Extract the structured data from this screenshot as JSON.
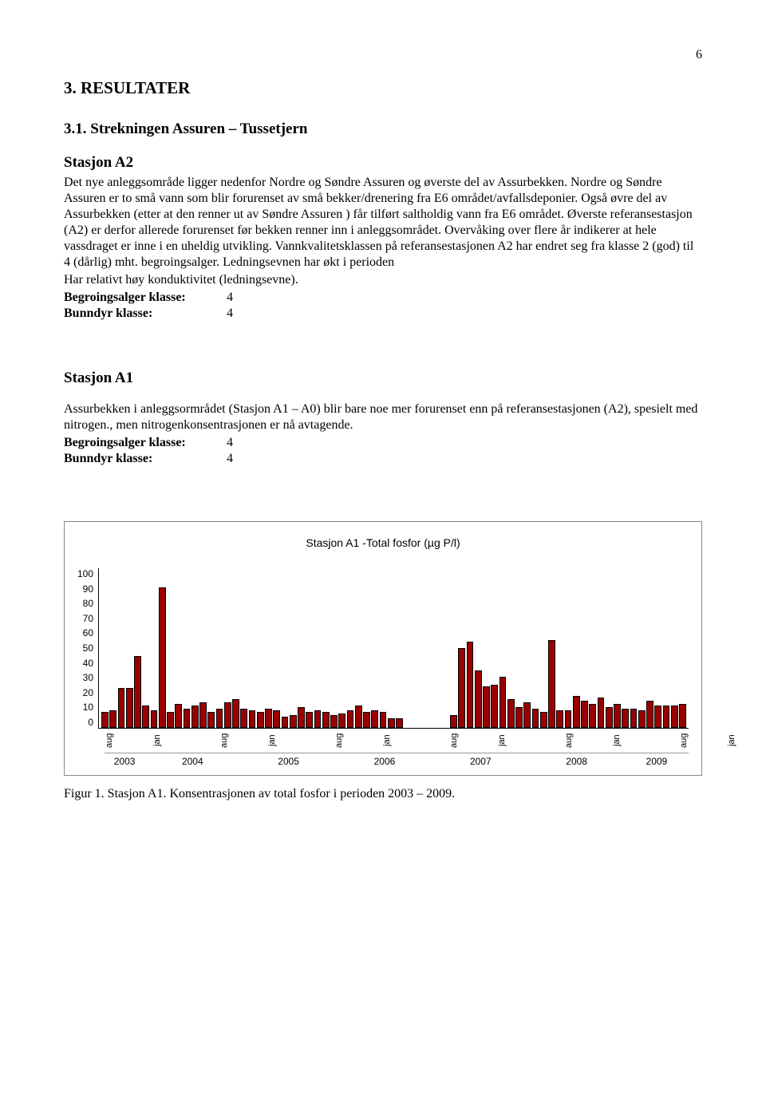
{
  "page_number": "6",
  "section": {
    "heading": "3.   RESULTATER",
    "subheading": "3.1.   Strekningen Assuren – Tussetjern"
  },
  "stationA2": {
    "title": "Stasjon A2",
    "para1": "Det nye anleggsområde ligger nedenfor Nordre og Søndre Assuren og øverste del av Assurbekken. Nordre og Søndre Assuren er to små vann som blir forurenset av små bekker/drenering fra E6 området/avfallsdeponier. Også øvre del av Assurbekken (etter at den renner ut av Søndre Assuren ) får tilført saltholdig vann fra E6 området. Øverste referansestasjon (A2) er derfor allerede forurenset før bekken renner inn i anleggsområdet. Overvåking over flere år indikerer at hele vassdraget er inne i en uheldig utvikling. Vannkvalitetsklassen på referansestasjonen A2 har endret seg fra klasse 2 (god) til 4 (dårlig) mht. begroingsalger. Ledningsevnen har økt i perioden",
    "para2": "Har relativt høy konduktivitet (ledningsevne).",
    "begroLabel": "Begroingsalger klasse:",
    "begroVal": "4",
    "bunnLabel": "Bunndyr klasse:",
    "bunnVal": "4"
  },
  "stationA1": {
    "title": "Stasjon A1",
    "para": "Assurbekken i anleggsormrådet (Stasjon A1 – A0) blir bare noe mer forurenset enn på referansestasjonen (A2), spesielt med nitrogen., men nitrogenkonsentrasjonen er nå avtagende.",
    "begroLabel": "Begroingsalger klasse:",
    "begroVal": "4",
    "bunnLabel": "Bunndyr klasse:",
    "bunnVal": "4"
  },
  "chart": {
    "type": "bar",
    "title": "Stasjon A1 -Total fosfor (µg P/l)",
    "background_color": "#ffffff",
    "bar_fill": "#9b0000",
    "bar_border": "#000000",
    "axis_color": "#000000",
    "ylim": [
      0,
      100
    ],
    "ytick_step": 10,
    "yticks": [
      "100",
      "90",
      "80",
      "70",
      "60",
      "50",
      "40",
      "30",
      "20",
      "10",
      "0"
    ],
    "title_fontsize": 14,
    "tick_fontsize": 12,
    "bars": [
      {
        "year": "2003",
        "m": "aug",
        "v": 10
      },
      {
        "year": "2003",
        "m": "sep",
        "v": 11
      },
      {
        "year": "2003",
        "m": "okt",
        "v": 25
      },
      {
        "year": "2003",
        "m": "nov",
        "v": 25
      },
      {
        "year": "2003",
        "m": "des",
        "v": 45
      },
      {
        "year": "2004",
        "m": "jan",
        "v": 14
      },
      {
        "year": "2004",
        "m": "feb",
        "v": 11
      },
      {
        "year": "2004",
        "m": "mar",
        "v": 88
      },
      {
        "year": "2004",
        "m": "apr",
        "v": 10
      },
      {
        "year": "2004",
        "m": "mai",
        "v": 15
      },
      {
        "year": "2004",
        "m": "jun",
        "v": 12
      },
      {
        "year": "2004",
        "m": "jul",
        "v": 14
      },
      {
        "year": "2004",
        "m": "aug",
        "v": 16
      },
      {
        "year": "2004",
        "m": "sep",
        "v": 10
      },
      {
        "year": "2004",
        "m": "okt",
        "v": 12
      },
      {
        "year": "2004",
        "m": "nov",
        "v": 16
      },
      {
        "year": "2004",
        "m": "des",
        "v": 18
      },
      {
        "year": "2005",
        "m": "jan",
        "v": 12
      },
      {
        "year": "2005",
        "m": "feb",
        "v": 11
      },
      {
        "year": "2005",
        "m": "mar",
        "v": 10
      },
      {
        "year": "2005",
        "m": "apr",
        "v": 12
      },
      {
        "year": "2005",
        "m": "mai",
        "v": 11
      },
      {
        "year": "2005",
        "m": "jun",
        "v": 7
      },
      {
        "year": "2005",
        "m": "jul",
        "v": 8
      },
      {
        "year": "2005",
        "m": "aug",
        "v": 13
      },
      {
        "year": "2005",
        "m": "sep",
        "v": 10
      },
      {
        "year": "2005",
        "m": "okt",
        "v": 11
      },
      {
        "year": "2005",
        "m": "nov",
        "v": 10
      },
      {
        "year": "2005",
        "m": "des",
        "v": 8
      },
      {
        "year": "2006",
        "m": "jan",
        "v": 9
      },
      {
        "year": "2006",
        "m": "feb",
        "v": 11
      },
      {
        "year": "2006",
        "m": "mar",
        "v": 14
      },
      {
        "year": "2006",
        "m": "apr",
        "v": 10
      },
      {
        "year": "2006",
        "m": "mai",
        "v": 11
      },
      {
        "year": "2006",
        "m": "jun",
        "v": 10
      },
      {
        "year": "2006",
        "m": "jul",
        "v": 6
      },
      {
        "year": "2006",
        "m": "aug",
        "v": 6
      },
      {
        "year": "2006",
        "m": "sep",
        "v": null
      },
      {
        "year": "2006",
        "m": "okt",
        "v": null
      },
      {
        "year": "2006",
        "m": "nov",
        "v": null
      },
      {
        "year": "2006",
        "m": "des",
        "v": null
      },
      {
        "year": "2007",
        "m": "jan",
        "v": null
      },
      {
        "year": "2007",
        "m": "feb",
        "v": null
      },
      {
        "year": "2007",
        "m": "mar",
        "v": null
      },
      {
        "year": "2007",
        "m": "apr",
        "v": 8
      },
      {
        "year": "2007",
        "m": "mai",
        "v": 50
      },
      {
        "year": "2007",
        "m": "jun",
        "v": 54
      },
      {
        "year": "2007",
        "m": "jul",
        "v": 36
      },
      {
        "year": "2007",
        "m": "aug",
        "v": 26
      },
      {
        "year": "2007",
        "m": "sep",
        "v": 27
      },
      {
        "year": "2007",
        "m": "okt",
        "v": 32
      },
      {
        "year": "2007",
        "m": "nov",
        "v": 18
      },
      {
        "year": "2007",
        "m": "des",
        "v": 13
      },
      {
        "year": "2008",
        "m": "jan",
        "v": 16
      },
      {
        "year": "2008",
        "m": "feb",
        "v": 12
      },
      {
        "year": "2008",
        "m": "mar",
        "v": 10
      },
      {
        "year": "2008",
        "m": "apr",
        "v": 55
      },
      {
        "year": "2008",
        "m": "mai",
        "v": 11
      },
      {
        "year": "2008",
        "m": "jun",
        "v": 11
      },
      {
        "year": "2008",
        "m": "jul",
        "v": 20
      },
      {
        "year": "2008",
        "m": "aug",
        "v": 17
      },
      {
        "year": "2008",
        "m": "sep",
        "v": 15
      },
      {
        "year": "2008",
        "m": "okt",
        "v": 19
      },
      {
        "year": "2008",
        "m": "nov",
        "v": 13
      },
      {
        "year": "2008",
        "m": "des",
        "v": 15
      },
      {
        "year": "2009",
        "m": "jan",
        "v": 12
      },
      {
        "year": "2009",
        "m": "feb",
        "v": 12
      },
      {
        "year": "2009",
        "m": "mar",
        "v": 11
      },
      {
        "year": "2009",
        "m": "apr",
        "v": 17
      },
      {
        "year": "2009",
        "m": "mai",
        "v": 14
      },
      {
        "year": "2009",
        "m": "jun",
        "v": 14
      },
      {
        "year": "2009",
        "m": "jul",
        "v": 14
      },
      {
        "year": "2009",
        "m": "aug",
        "v": 15
      }
    ],
    "month_labels": [
      "aug",
      "jan",
      "aug",
      "jan",
      "aug",
      "jan",
      "aug",
      "jan",
      "aug",
      "jan",
      "aug",
      "jan",
      "aug"
    ],
    "years": [
      "2003",
      "2004",
      "2005",
      "2006",
      "2007",
      "2008",
      "2009"
    ],
    "year_spans": [
      5,
      12,
      12,
      12,
      12,
      12,
      8
    ]
  },
  "figure_caption": "Figur 1. Stasjon A1. Konsentrasjonen av total fosfor i perioden 2003 – 2009."
}
